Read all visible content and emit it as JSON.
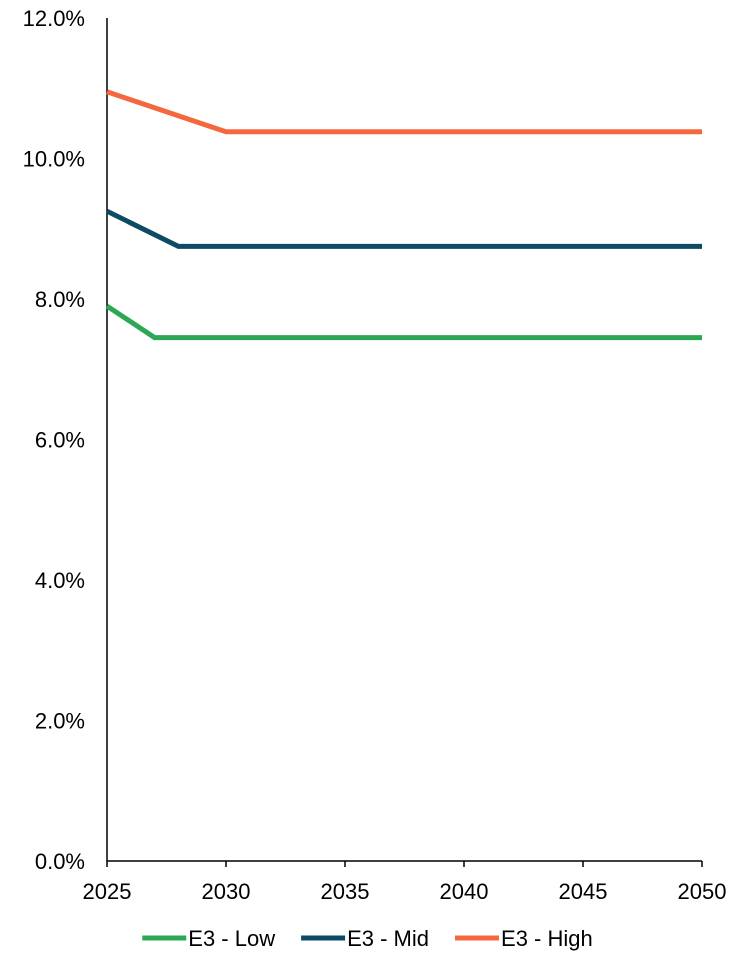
{
  "chart_data": {
    "type": "line",
    "title": "",
    "xlabel": "",
    "ylabel": "",
    "xlim": [
      2025,
      2050
    ],
    "ylim": [
      0,
      12
    ],
    "x_ticks": [
      2025,
      2030,
      2035,
      2040,
      2045,
      2050
    ],
    "x_tick_labels": [
      "2025",
      "2030",
      "2035",
      "2040",
      "2045",
      "2050"
    ],
    "y_ticks": [
      0,
      2,
      4,
      6,
      8,
      10,
      12
    ],
    "y_tick_labels": [
      "0.0%",
      "2.0%",
      "4.0%",
      "6.0%",
      "8.0%",
      "10.0%",
      "12.0%"
    ],
    "grid": false,
    "legend_position": "bottom",
    "series": [
      {
        "name": "E3 - Low",
        "color": "#2ca855",
        "x": [
          2025,
          2027,
          2050
        ],
        "y": [
          7.9,
          7.45,
          7.45
        ]
      },
      {
        "name": "E3 - Mid",
        "color": "#0d4a63",
        "x": [
          2025,
          2028,
          2050
        ],
        "y": [
          9.25,
          8.75,
          8.75
        ]
      },
      {
        "name": "E3 - High",
        "color": "#f5683e",
        "x": [
          2025,
          2030,
          2050
        ],
        "y": [
          10.95,
          10.38,
          10.38
        ]
      }
    ]
  }
}
